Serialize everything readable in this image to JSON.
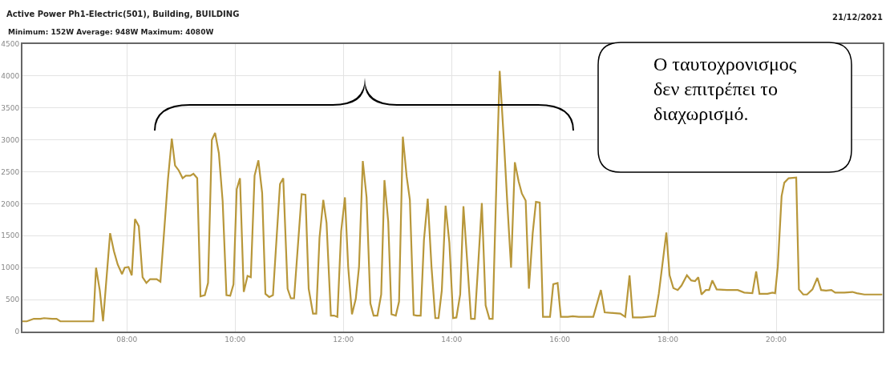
{
  "chart_data": {
    "type": "line",
    "title": "Active Power Ph1-Electric(501), Building, BUILDING",
    "subtitle": "Minimum: 152W Average: 948W Maximum: 4080W",
    "annotations": [
      "21/12/2021",
      "Ο ταυτοχρονισμος\nδεν επιτρέπει το\nδιαχωρισμό."
    ],
    "x": [
      6.07,
      6.15,
      6.28,
      6.4,
      6.47,
      6.62,
      6.7,
      6.77,
      7.33,
      7.38,
      7.43,
      7.5,
      7.56,
      7.69,
      7.76,
      7.83,
      7.91,
      7.96,
      8.03,
      8.09,
      8.15,
      8.22,
      8.29,
      8.36,
      8.43,
      8.55,
      8.62,
      8.76,
      8.83,
      8.89,
      8.96,
      9.03,
      9.09,
      9.17,
      9.23,
      9.3,
      9.36,
      9.44,
      9.5,
      9.57,
      9.63,
      9.7,
      9.77,
      9.84,
      9.91,
      9.97,
      10.03,
      10.09,
      10.16,
      10.23,
      10.29,
      10.36,
      10.43,
      10.5,
      10.56,
      10.63,
      10.7,
      10.83,
      10.89,
      10.97,
      11.03,
      11.09,
      11.23,
      11.3,
      11.36,
      11.44,
      11.5,
      11.56,
      11.63,
      11.69,
      11.77,
      11.83,
      11.89,
      11.96,
      12.03,
      12.09,
      12.16,
      12.23,
      12.29,
      12.36,
      12.43,
      12.5,
      12.56,
      12.63,
      12.7,
      12.76,
      12.83,
      12.89,
      12.97,
      13.03,
      13.1,
      13.17,
      13.23,
      13.3,
      13.36,
      13.43,
      13.49,
      13.56,
      13.63,
      13.7,
      13.76,
      13.82,
      13.89,
      13.96,
      14.03,
      14.09,
      14.16,
      14.22,
      14.29,
      14.36,
      14.43,
      14.49,
      14.56,
      14.63,
      14.7,
      14.76,
      14.83,
      14.89,
      14.97,
      15.03,
      15.1,
      15.17,
      15.24,
      15.3,
      15.37,
      15.43,
      15.5,
      15.56,
      15.63,
      15.69,
      15.76,
      15.82,
      15.88,
      15.96,
      16.02,
      16.15,
      16.24,
      16.35,
      16.62,
      16.76,
      16.83,
      17.12,
      17.21,
      17.29,
      17.35,
      17.51,
      17.76,
      17.83,
      17.97,
      18.03,
      18.1,
      18.18,
      18.25,
      18.35,
      18.43,
      18.5,
      18.56,
      18.62,
      18.7,
      18.76,
      18.82,
      18.9,
      19.09,
      19.29,
      19.41,
      19.56,
      19.63,
      19.69,
      19.84,
      19.93,
      19.98,
      20.03,
      20.1,
      20.15,
      20.23,
      20.37,
      20.42,
      20.5,
      20.57,
      20.67,
      20.76,
      20.83,
      20.92,
      21.02,
      21.09,
      21.26,
      21.41,
      21.49,
      21.63,
      21.96
    ],
    "series": [
      {
        "color": "#b8973a",
        "values": [
          160,
          160,
          200,
          200,
          210,
          200,
          200,
          160,
          160,
          160,
          1000,
          640,
          160,
          1540,
          1260,
          1050,
          900,
          1000,
          1010,
          880,
          1760,
          1650,
          850,
          760,
          820,
          820,
          780,
          2390,
          3020,
          2600,
          2520,
          2400,
          2440,
          2440,
          2470,
          2400,
          550,
          570,
          760,
          3000,
          3110,
          2790,
          2040,
          570,
          560,
          740,
          2230,
          2400,
          620,
          870,
          850,
          2440,
          2680,
          2170,
          590,
          540,
          570,
          2310,
          2400,
          670,
          520,
          520,
          2150,
          2140,
          670,
          280,
          280,
          1470,
          2060,
          1700,
          250,
          250,
          230,
          1570,
          2100,
          1010,
          270,
          510,
          1010,
          2670,
          2100,
          440,
          250,
          250,
          580,
          2370,
          1720,
          270,
          250,
          470,
          3050,
          2430,
          2060,
          260,
          250,
          250,
          1430,
          2080,
          1010,
          210,
          210,
          640,
          1970,
          1390,
          210,
          220,
          580,
          1960,
          1090,
          200,
          200,
          1010,
          2010,
          410,
          200,
          200,
          2350,
          4080,
          2950,
          2020,
          1000,
          2650,
          2350,
          2160,
          2050,
          670,
          1540,
          2030,
          2020,
          230,
          230,
          230,
          740,
          760,
          230,
          230,
          240,
          230,
          230,
          650,
          300,
          280,
          230,
          880,
          220,
          220,
          240,
          590,
          1550,
          880,
          680,
          650,
          720,
          880,
          800,
          790,
          850,
          580,
          650,
          650,
          800,
          660,
          650,
          650,
          610,
          600,
          940,
          590,
          590,
          610,
          600,
          1020,
          2120,
          2330,
          2400,
          2410,
          660,
          580,
          580,
          660,
          840,
          650,
          640,
          650,
          610,
          610,
          620,
          600,
          580,
          580
        ]
      }
    ],
    "xlim": [
      6.07,
      21.97
    ],
    "ylim": [
      0,
      4500
    ],
    "xticks": [
      {
        "value": 8,
        "label": "08:00"
      },
      {
        "value": 10,
        "label": "10:00"
      },
      {
        "value": 12,
        "label": "12:00"
      },
      {
        "value": 14,
        "label": "14:00"
      },
      {
        "value": 16,
        "label": "16:00"
      },
      {
        "value": 18,
        "label": "18:00"
      },
      {
        "value": 20,
        "label": "20:00"
      }
    ],
    "yticks": [
      0,
      500,
      1000,
      1500,
      2000,
      2500,
      3000,
      3500,
      4000,
      4500
    ],
    "grid": true,
    "marker": "none",
    "line_style": "solid"
  }
}
